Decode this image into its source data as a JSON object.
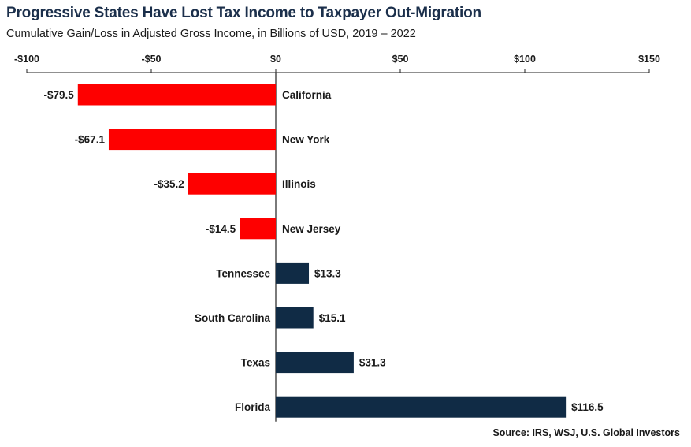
{
  "title": "Progressive States Have Lost Tax Income to Taxpayer Out-Migration",
  "subtitle": "Cumulative Gain/Loss in Adjusted Gross Income, in Billions of USD, 2019 – 2022",
  "source": "Source: IRS, WSJ, U.S. Global Investors",
  "colors": {
    "negative": "#fe0000",
    "positive": "#102b45",
    "title": "#1b2f4b"
  },
  "chart_data": {
    "type": "bar",
    "orientation": "horizontal",
    "title": "Progressive States Have Lost Tax Income to Taxpayer Out-Migration",
    "subtitle": "Cumulative Gain/Loss in Adjusted Gross Income, in Billions of USD, 2019 – 2022",
    "xlim": [
      -100,
      150
    ],
    "axis_position": "top",
    "ticks": [
      -100,
      -50,
      0,
      50,
      100,
      150
    ],
    "tick_labels": [
      "-$100",
      "-$50",
      "$0",
      "$50",
      "$100",
      "$150"
    ],
    "grid": false,
    "categories": [
      "California",
      "New York",
      "Illinois",
      "New Jersey",
      "Tennessee",
      "South Carolina",
      "Texas",
      "Florida"
    ],
    "values": [
      -79.5,
      -67.1,
      -35.2,
      -14.5,
      13.3,
      15.1,
      31.3,
      116.5
    ],
    "value_labels": [
      "-$79.5",
      "-$67.1",
      "-$35.2",
      "-$14.5",
      "$13.3",
      "$15.1",
      "$31.3",
      "$116.5"
    ]
  }
}
